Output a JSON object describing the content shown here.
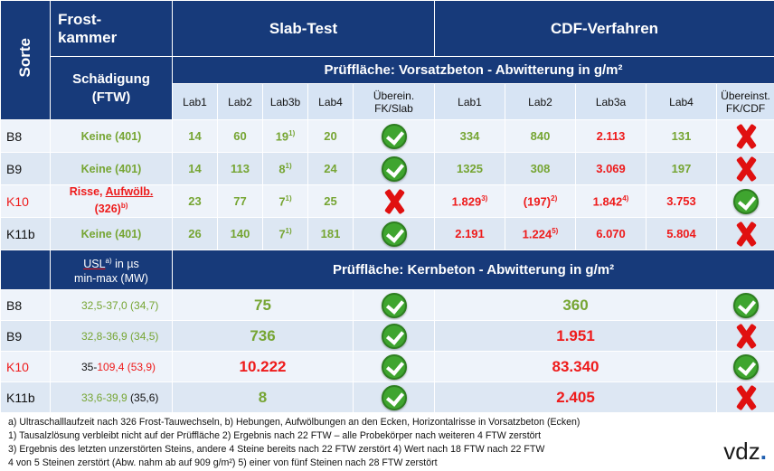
{
  "header": {
    "sorte": "Sorte",
    "frost_line1": "Frost-",
    "frost_line2": "kammer",
    "slab_test": "Slab-Test",
    "cdf": "CDF-Verfahren",
    "schaedigung_line1": "Schädigung",
    "schaedigung_line2": "(FTW)",
    "prueffl_vorsatz": "Prüffläche: Vorsatzbeton - Abwitterung in g/m²",
    "labs_slab": [
      "Lab1",
      "Lab2",
      "Lab3b",
      "Lab4"
    ],
    "uebereinst_slab_line1": "Überein.",
    "uebereinst_slab_line2": "FK/Slab",
    "labs_cdf": [
      "Lab1",
      "Lab2",
      "Lab3a",
      "Lab4"
    ],
    "uebereinst_cdf_line1": "Übereinst.",
    "uebereinst_cdf_line2": "FK/CDF"
  },
  "upper_rows": [
    {
      "sorte": "B8",
      "sorte_color": "black",
      "damage": "Keine (401)",
      "damage_color": "green",
      "slab": [
        {
          "v": "14",
          "c": "green"
        },
        {
          "v": "60",
          "c": "green"
        },
        {
          "v": "19",
          "sup": "1)",
          "c": "green"
        },
        {
          "v": "20",
          "c": "green"
        }
      ],
      "slab_ok": true,
      "cdf": [
        {
          "v": "334",
          "c": "green"
        },
        {
          "v": "840",
          "c": "green"
        },
        {
          "v": "2.113",
          "c": "red"
        },
        {
          "v": "131",
          "c": "green"
        }
      ],
      "cdf_ok": false
    },
    {
      "sorte": "B9",
      "sorte_color": "black",
      "damage": "Keine (401)",
      "damage_color": "green",
      "slab": [
        {
          "v": "14",
          "c": "green"
        },
        {
          "v": "113",
          "c": "green"
        },
        {
          "v": "8",
          "sup": "1)",
          "c": "green"
        },
        {
          "v": "24",
          "c": "green"
        }
      ],
      "slab_ok": true,
      "cdf": [
        {
          "v": "1325",
          "c": "green"
        },
        {
          "v": "308",
          "c": "green"
        },
        {
          "v": "3.069",
          "c": "red"
        },
        {
          "v": "197",
          "c": "green"
        }
      ],
      "cdf_ok": false
    },
    {
      "sorte": "K10",
      "sorte_color": "red",
      "damage_line1a": "Risse, ",
      "damage_line1b": "Aufwölb.",
      "damage_line2": "(326)",
      "damage_sup": "b)",
      "damage_color": "red",
      "slab": [
        {
          "v": "23",
          "c": "green"
        },
        {
          "v": "77",
          "c": "green"
        },
        {
          "v": "7",
          "sup": "1)",
          "c": "green"
        },
        {
          "v": "25",
          "c": "green"
        }
      ],
      "slab_ok": false,
      "cdf": [
        {
          "v": "1.829",
          "sup": "3)",
          "c": "red"
        },
        {
          "v": "(197)",
          "sup": "2)",
          "c": "red"
        },
        {
          "v": "1.842",
          "sup": "4)",
          "c": "red"
        },
        {
          "v": "3.753",
          "c": "red"
        }
      ],
      "cdf_ok": true
    },
    {
      "sorte": "K11b",
      "sorte_color": "black",
      "damage": "Keine (401)",
      "damage_color": "green",
      "slab": [
        {
          "v": "26",
          "c": "green"
        },
        {
          "v": "140",
          "c": "green"
        },
        {
          "v": "7",
          "sup": "1)",
          "c": "green"
        },
        {
          "v": "181",
          "c": "green"
        }
      ],
      "slab_ok": true,
      "cdf": [
        {
          "v": "2.191",
          "c": "red"
        },
        {
          "v": "1.224",
          "sup": "5)",
          "c": "red"
        },
        {
          "v": "6.070",
          "c": "red"
        },
        {
          "v": "5.804",
          "c": "red"
        }
      ],
      "cdf_ok": false
    }
  ],
  "lower_header": {
    "usl_label": "USL",
    "usl_sup": "a)",
    "usl_line1_rest": " in µs",
    "usl_line2": "min-max (MW)",
    "prueffl_kern": "Prüffläche: Kernbeton - Abwitterung in g/m²"
  },
  "lower_rows": [
    {
      "sorte": "B8",
      "sorte_color": "black",
      "usl_range": "32,5-37,0",
      "usl_mw": " (34,7)",
      "usl_range_color": "green",
      "usl_mw_color": "green",
      "slab_val": "75",
      "slab_color": "green",
      "slab_ok": true,
      "cdf_val": "360",
      "cdf_color": "green",
      "cdf_ok": true
    },
    {
      "sorte": "B9",
      "sorte_color": "black",
      "usl_range": "32,8-36,9",
      "usl_mw": " (34,5)",
      "usl_range_color": "green",
      "usl_mw_color": "green",
      "slab_val": "736",
      "slab_color": "green",
      "slab_ok": true,
      "cdf_val": "1.951",
      "cdf_color": "red",
      "cdf_ok": false
    },
    {
      "sorte": "K10",
      "sorte_color": "red",
      "usl_range_a": "35-",
      "usl_range_b": "109,4",
      "usl_mw": " (53,9)",
      "usl_range_color": "black",
      "usl_mw_color": "red",
      "slab_val": "10.222",
      "slab_color": "red",
      "slab_ok": true,
      "cdf_val": "83.340",
      "cdf_color": "red",
      "cdf_ok": true
    },
    {
      "sorte": "K11b",
      "sorte_color": "black",
      "usl_range": "33,6-39,9",
      "usl_mw": " (35,6)",
      "usl_range_color": "green",
      "usl_mw_color": "black",
      "slab_val": "8",
      "slab_color": "green",
      "slab_ok": true,
      "cdf_val": "2.405",
      "cdf_color": "red",
      "cdf_ok": false
    }
  ],
  "footnotes": [
    "a) Ultraschalllaufzeit  nach 326 Frost-Tauwechseln, b) Hebungen, Aufwölbungen  an den Ecken,  Horizontalrisse  in Vorsatzbeton  (Ecken)",
    "1) Tausalzlösung  verbleibt nicht auf der Prüffläche    2) Ergebnis nach 22 FTW – alle Probekörper  nach weiteren 4 FTW zerstört",
    "3) Ergebnis des letzten unzerstörten  Steins, andere 4 Steine bereits nach 22 FTW zerstört 4) Wert nach 18 FTW nach 22 FTW",
    "4 von 5 Steinen zerstört (Abw. nahm ab auf 909 g/m²) 5) einer von fünf Steinen nach 28 FTW zerstört"
  ],
  "logo": {
    "text": "vdz",
    "dot": "."
  },
  "icons": {
    "ok": "check-icon",
    "not_ok": "cross-icon"
  },
  "colors": {
    "header_bg": "#173a7a",
    "green": "#76a533",
    "red": "#ee1b1b"
  }
}
